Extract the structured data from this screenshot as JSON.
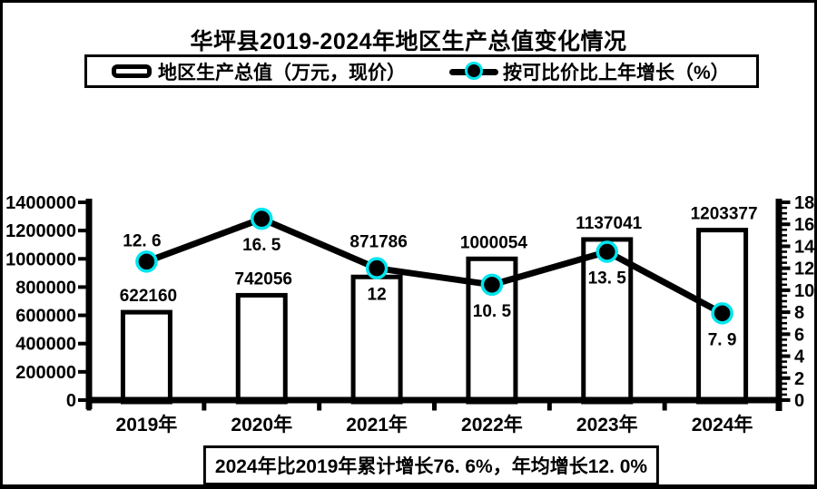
{
  "header": {
    "title": "华坪县2019-2024年地区生产总值变化情况"
  },
  "legend": {
    "bar_label": "地区生产总值（万元，现价）",
    "line_label": "按可比价比上年增长（%）"
  },
  "footnote": {
    "text": "2024年比2019年累计增长76. 6%，年均增长12. 0%"
  },
  "chart_data": {
    "type": "bar",
    "subtype": "combo-bar-line-dual-axis",
    "title": "华坪县2019-2024年地区生产总值变化情况",
    "categories": [
      "2019年",
      "2020年",
      "2021年",
      "2022年",
      "2023年",
      "2024年"
    ],
    "series": [
      {
        "name": "地区生产总值（万元，现价）",
        "type": "bar",
        "axis": "left",
        "values": [
          622160,
          742056,
          871786,
          1000054,
          1137041,
          1203377
        ],
        "data_labels": [
          "622160",
          "742056",
          "871786",
          "1000054",
          "1137041",
          "1203377"
        ]
      },
      {
        "name": "按可比价比上年增长（%）",
        "type": "line",
        "axis": "right",
        "values": [
          12.6,
          16.5,
          12,
          10.5,
          13.5,
          7.9
        ],
        "data_labels": [
          "12. 6",
          "16. 5",
          "12",
          "10. 5",
          "13. 5",
          "7. 9"
        ]
      }
    ],
    "left_axis": {
      "min": 0,
      "max": 1400000,
      "step": 200000,
      "tick_labels": [
        "0",
        "200000",
        "400000",
        "600000",
        "800000",
        "1000000",
        "1200000",
        "1400000"
      ]
    },
    "right_axis": {
      "min": 0,
      "max": 18,
      "step": 2,
      "minor_step": 0.5,
      "tick_labels": [
        "0",
        "2",
        "4",
        "6",
        "8",
        "10",
        "12",
        "14",
        "16",
        "18"
      ]
    },
    "legend_position": "top",
    "grid": false,
    "annotation": "2024年比2019年累计增长76. 6%，年均增长12. 0%",
    "colors": {
      "bar_fill": "#ffffff",
      "stroke": "#000000",
      "marker_fill": "#000000",
      "marker_ring": "#00e5ee",
      "text": "#000000",
      "background": "#ffffff"
    }
  }
}
